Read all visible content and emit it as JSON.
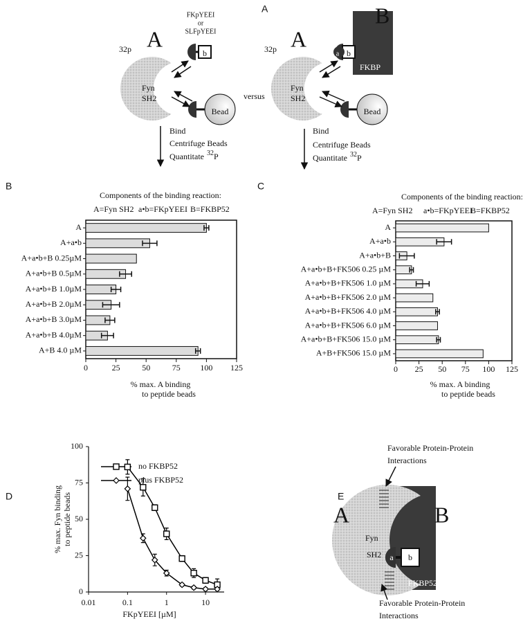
{
  "panel_labels": [
    "A",
    "B",
    "C",
    "D",
    "E"
  ],
  "diagram_a": {
    "peptide_label": [
      "FKpYEEI",
      "or",
      "SLFpYEEI"
    ],
    "isotope": "32",
    "isotope_element": "p",
    "protein_a": "A",
    "fyn": "Fyn",
    "sh2": "SH2",
    "a": "a",
    "b": "b",
    "bead": "Bead",
    "versus": "versus",
    "protein_b": "B",
    "fkbp": "FKBP",
    "steps": [
      "Bind",
      "Centrifuge Beads",
      "Quantitate"
    ],
    "step_isotope": "32",
    "step_element": "P"
  },
  "chart_data": [
    {
      "type": "bar",
      "horizontal": true,
      "title": "Components of the binding reaction:",
      "legend_items": [
        "A=Fyn SH2",
        "a•b=FKpYEEI",
        "B=FKBP52"
      ],
      "categories": [
        "A",
        "A+a•b",
        "A+a•b+B 0.25µM",
        "A+a•b+B 0.5µM",
        "A+a•b+B 1.0µM",
        "A+a•b+B 2.0µM",
        "A+a•b+B 3.0µM",
        "A+a•b+B 4.0µM",
        "A+B 4.0 µM"
      ],
      "values": [
        100,
        53,
        42,
        33,
        25,
        21,
        20,
        18,
        93
      ],
      "errors": [
        2,
        6,
        null,
        5,
        4,
        7,
        4,
        5,
        2
      ],
      "color": "#dcdcdc",
      "xlim": [
        0,
        125
      ],
      "xticks": [
        0,
        25,
        50,
        75,
        100,
        125
      ],
      "xlabel": [
        "% max. A binding",
        "to peptide beads"
      ]
    },
    {
      "type": "bar",
      "horizontal": true,
      "title": "Components of the binding reaction:",
      "legend_items": [
        "A=Fyn SH2",
        "a•b=FKpYEEI",
        "B=FKBP52"
      ],
      "categories": [
        "A",
        "A+a•b",
        "A+a•b+B",
        "A+a•b+B+FK506 0.25 µM",
        "A+a•b+B+FK506 1.0 µM",
        "A+a•b+B+FK506 2.0 µM",
        "A+a•b+B+FK506 4.0 µM",
        "A+a•b+B+FK506 6.0 µM",
        "A+a•b+B+FK506 15.0 µM",
        "A+B+FK506 15.0 µM"
      ],
      "values": [
        100,
        52,
        12,
        17,
        29,
        40,
        45,
        45,
        46,
        94
      ],
      "errors": [
        null,
        8,
        8,
        2,
        7,
        null,
        2,
        null,
        2,
        null
      ],
      "color": "#ececec",
      "xlim": [
        0,
        125
      ],
      "xticks": [
        0,
        25,
        50,
        75,
        100,
        125
      ],
      "xlabel": [
        "% max. A binding",
        "to peptide beads"
      ]
    },
    {
      "type": "line",
      "log_x": true,
      "xlabel": "FKpYEEI [µM]",
      "ylabel": [
        "% max. Fyn binding",
        "to peptide beads"
      ],
      "xlim": [
        0.01,
        30
      ],
      "xticks": [
        0.01,
        0.1,
        1,
        10
      ],
      "ylim": [
        0,
        100
      ],
      "yticks": [
        0,
        25,
        50,
        75,
        100
      ],
      "series": [
        {
          "name": "no FKBP52",
          "marker": "square",
          "color": "#000000",
          "x": [
            0.1,
            0.25,
            0.5,
            1,
            2.5,
            5,
            10,
            20
          ],
          "values": [
            86,
            72,
            58,
            40,
            23,
            13,
            8,
            5
          ],
          "errors": [
            5,
            6,
            2,
            4,
            2,
            3,
            2,
            4
          ]
        },
        {
          "name": "plus FKBP52",
          "marker": "diamond",
          "color": "#000000",
          "x": [
            0.1,
            0.25,
            0.5,
            1,
            2.5,
            5,
            10,
            20
          ],
          "values": [
            71,
            37,
            22,
            13,
            5,
            3,
            2,
            2
          ],
          "errors": [
            8,
            3,
            4,
            2,
            1,
            1,
            1,
            1
          ]
        }
      ]
    }
  ],
  "diagram_e": {
    "label_a": "A",
    "label_b": "B",
    "fyn": "Fyn",
    "sh2": "SH2",
    "a": "a",
    "b": "b",
    "fkbp": "FKBP52",
    "note_top": [
      "Favorable Protein-Protein",
      "Interactions"
    ],
    "note_bottom": [
      "Favorable Protein-Protein",
      "Interactions"
    ]
  }
}
